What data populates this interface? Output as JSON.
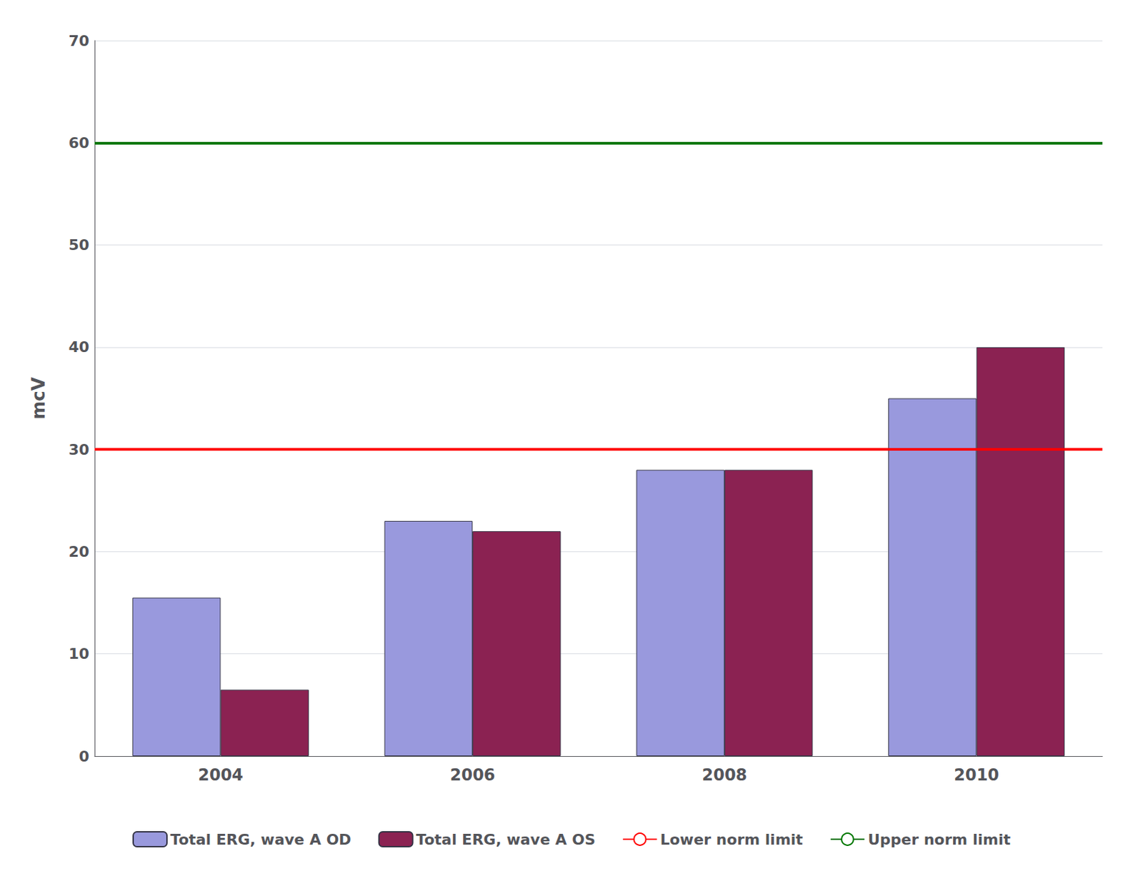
{
  "chart_data": {
    "type": "bar",
    "categories": [
      "2004",
      "2006",
      "2008",
      "2010"
    ],
    "series": [
      {
        "name": "Total ERG, wave A OD",
        "color": "#9999dd",
        "values": [
          15.5,
          23.0,
          28.0,
          35.0
        ]
      },
      {
        "name": "Total ERG, wave A OS",
        "color": "#8b2252",
        "values": [
          6.5,
          22.0,
          28.0,
          40.0
        ]
      }
    ],
    "hlines": [
      {
        "name": "Lower norm limit",
        "color": "#ff0000",
        "value": 30.0
      },
      {
        "name": "Upper norm limit",
        "color": "#007700",
        "value": 60.0
      }
    ],
    "ylabel": "mcV",
    "ylim": [
      0,
      70
    ],
    "yticks": [
      0,
      10,
      20,
      30,
      40,
      50,
      60,
      70
    ],
    "grid": true,
    "legend": "bottom"
  }
}
